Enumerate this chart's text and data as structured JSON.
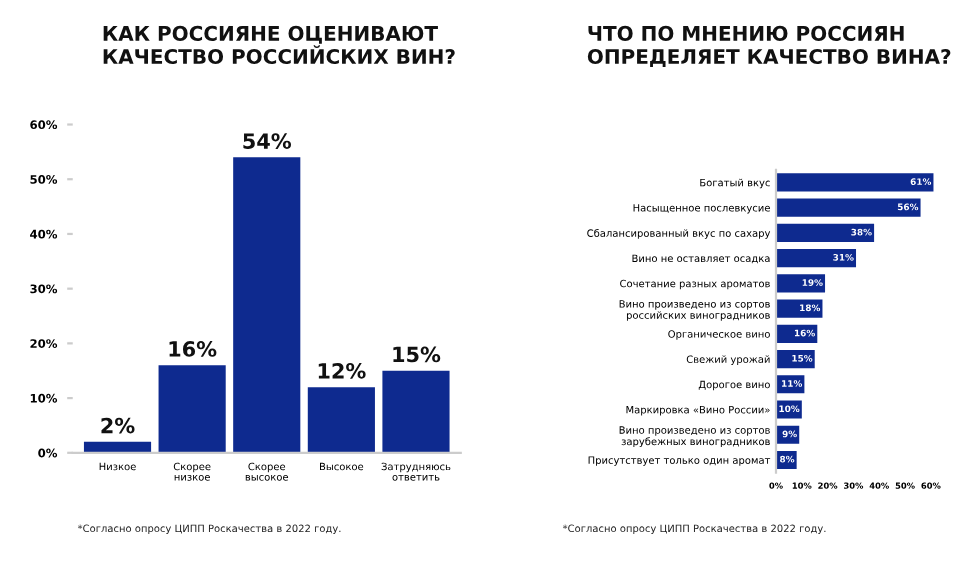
{
  "chart_data": [
    {
      "type": "bar",
      "title": "КАК РОССИЯНЕ ОЦЕНИВАЮТ\nКАЧЕСТВО РОССИЙСКИХ ВИН?",
      "categories": [
        "Низкое",
        "Скорее\nнизкое",
        "Скорее\nвысокое",
        "Высокое",
        "Затрудняюсь\nответить"
      ],
      "values": [
        2,
        16,
        54,
        12,
        15
      ],
      "color": "#0e2a8f",
      "value_labels": [
        "2%",
        "16%",
        "54%",
        "12%",
        "15%"
      ],
      "ylim": [
        0,
        60
      ],
      "yticks": [
        {
          "value": 0,
          "label": "0%"
        },
        {
          "value": 10,
          "label": "10%"
        },
        {
          "value": 20,
          "label": "20%"
        },
        {
          "value": 30,
          "label": "30%"
        },
        {
          "value": 40,
          "label": "40%"
        },
        {
          "value": 50,
          "label": "50%"
        },
        {
          "value": 60,
          "label": "60%"
        }
      ],
      "grid": false,
      "annotations": [
        "*Согласно опросу ЦИПП Роскачества в 2022 году."
      ]
    },
    {
      "type": "bar",
      "orientation": "horizontal",
      "title": "ЧТО ПО МНЕНИЮ РОССИЯН\nОПРЕДЕЛЯЕТ КАЧЕСТВО ВИНА?",
      "categories": [
        "Богатый вкус",
        "Насыщенное послевкусие",
        "Сбалансированный вкус по сахару",
        "Вино не оставляет осадка",
        "Сочетание разных ароматов",
        "Вино произведено из сортов\nроссийских виноградников",
        "Органическое вино",
        "Свежий урожай",
        "Дорогое вино",
        "Маркировка «Вино России»",
        "Вино произведено из сортов\nзарубежных виноградников",
        "Присутствует только один аромат"
      ],
      "values": [
        61,
        56,
        38,
        31,
        19,
        18,
        16,
        15,
        11,
        10,
        9,
        8
      ],
      "color": "#0e2a8f",
      "value_labels": [
        "61%",
        "56%",
        "38%",
        "31%",
        "19%",
        "18%",
        "16%",
        "15%",
        "11%",
        "10%",
        "9%",
        "8%"
      ],
      "xlim": [
        0,
        62
      ],
      "xticks": [
        {
          "value": 0,
          "label": "0%"
        },
        {
          "value": 10,
          "label": "10%"
        },
        {
          "value": 20,
          "label": "20%"
        },
        {
          "value": 30,
          "label": "30%"
        },
        {
          "value": 40,
          "label": "40%"
        },
        {
          "value": 50,
          "label": "50%"
        },
        {
          "value": 60,
          "label": "60%"
        }
      ],
      "grid": false,
      "annotations": [
        "*Согласно опросу ЦИПП Роскачества в 2022 году."
      ]
    }
  ]
}
